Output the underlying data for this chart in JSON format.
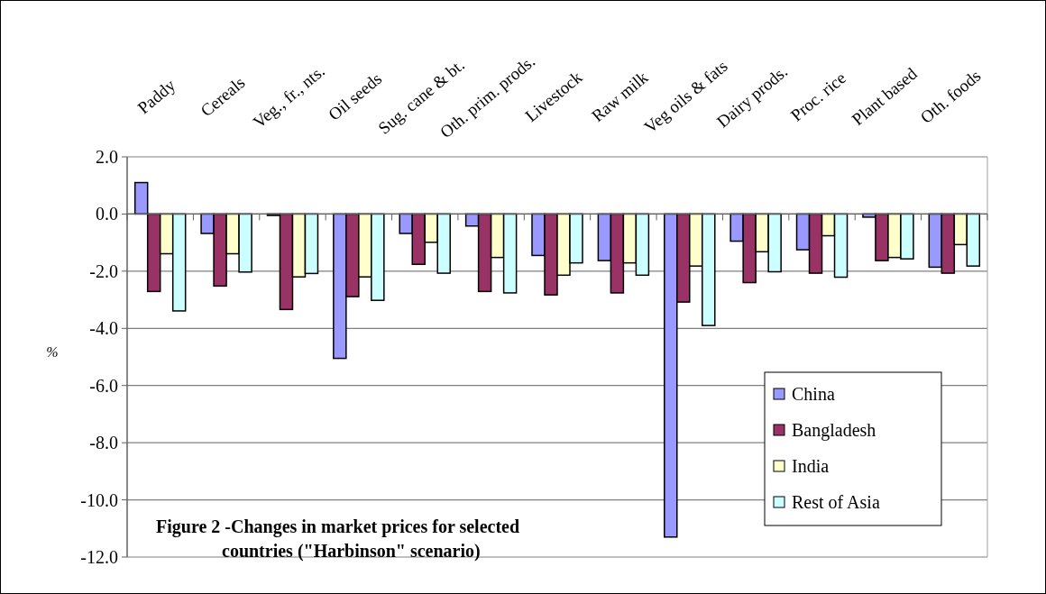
{
  "chart_data": {
    "type": "bar",
    "title": "Figure 2 -Changes in market prices for selected\ncountries (\"Harbinson\" scenario)",
    "ylabel": "%",
    "categories": [
      "Paddy",
      "Cereals",
      "Veg., fr., nts.",
      "Oil seeds",
      "Sug. cane & bt.",
      "Oth. prim. prods.",
      "Livestock",
      "Raw milk",
      "Veg oils & fats",
      "Dairy prods.",
      "Proc. rice",
      "Plant based",
      "Oth. foods"
    ],
    "series": [
      {
        "name": "China",
        "color": "#9999ff",
        "values": [
          1.1,
          -0.68,
          -0.05,
          -5.05,
          -0.68,
          -0.42,
          -1.45,
          -1.63,
          -11.3,
          -0.95,
          -1.25,
          -0.11,
          -1.86
        ]
      },
      {
        "name": "Bangladesh",
        "color": "#993366",
        "values": [
          -2.71,
          -2.52,
          -3.34,
          -2.89,
          -1.76,
          -2.71,
          -2.83,
          -2.76,
          -3.08,
          -2.4,
          -2.07,
          -1.63,
          -2.07
        ]
      },
      {
        "name": "India",
        "color": "#ffffcc",
        "values": [
          -1.39,
          -1.39,
          -2.2,
          -2.2,
          -0.99,
          -1.52,
          -2.14,
          -1.71,
          -1.82,
          -1.32,
          -0.76,
          -1.52,
          -1.07
        ]
      },
      {
        "name": "Rest of Asia",
        "color": "#ccffff",
        "values": [
          -3.39,
          -2.03,
          -2.08,
          -3.02,
          -2.07,
          -2.76,
          -1.71,
          -2.14,
          -3.9,
          -2.02,
          -2.21,
          -1.57,
          -1.82
        ]
      }
    ],
    "ylim": [
      -12,
      2
    ],
    "yticks": [
      {
        "value": 2,
        "label": "2.0"
      },
      {
        "value": 0,
        "label": "0.0"
      },
      {
        "value": -2,
        "label": "-2.0"
      },
      {
        "value": -4,
        "label": "-4.0"
      },
      {
        "value": -6,
        "label": "-6.0"
      },
      {
        "value": -8,
        "label": "-8.0"
      },
      {
        "value": -10,
        "label": "-10.0"
      },
      {
        "value": -12,
        "label": "-12.0"
      }
    ],
    "grid": "y",
    "legend": "bottom right"
  }
}
